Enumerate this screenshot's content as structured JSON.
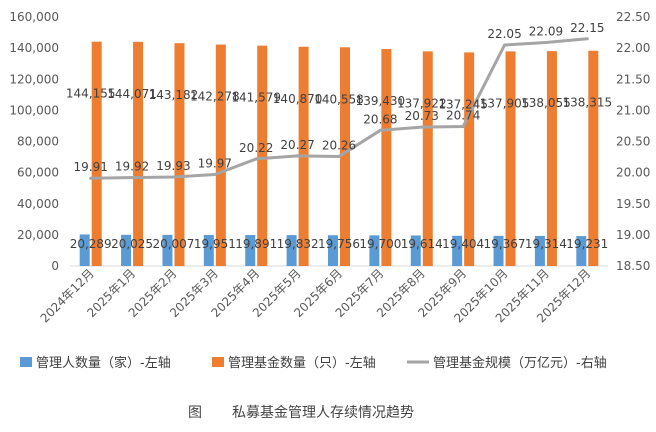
{
  "chart_data": {
    "type": "bar",
    "categories": [
      "2024年12月",
      "2025年1月",
      "2025年2月",
      "2025年3月",
      "2025年4月",
      "2025年5月",
      "2025年6月",
      "2025年7月",
      "2025年8月",
      "2025年9月",
      "2025年10月",
      "2025年11月",
      "2025年12月"
    ],
    "series": [
      {
        "name": "管理人数量（家）-左轴",
        "type": "bar",
        "axis": "left",
        "color": "#5b9bd5",
        "values": [
          20289,
          20025,
          20007,
          19951,
          19891,
          19832,
          19756,
          19700,
          19614,
          19404,
          19367,
          19314,
          19231
        ],
        "labels": [
          "20,289",
          "20,025",
          "20,007",
          "19,951",
          "19,891",
          "19,832",
          "19,756",
          "19,700",
          "19,614",
          "19,404",
          "19,367",
          "19,314",
          "19,231"
        ]
      },
      {
        "name": "管理基金数量（只）-左轴",
        "type": "bar",
        "axis": "left",
        "color": "#ed7d31",
        "values": [
          144155,
          144071,
          143182,
          142278,
          141579,
          140870,
          140558,
          139430,
          137922,
          137245,
          137905,
          138055,
          138315
        ],
        "labels": [
          "144,155",
          "144,071",
          "143,182",
          "142,278",
          "141,579",
          "140,870",
          "140,558",
          "139,430",
          "137,922",
          "137,245",
          "137,905",
          "138,055",
          "138,315"
        ]
      },
      {
        "name": "管理基金规模（万亿元）-右轴",
        "type": "line",
        "axis": "right",
        "color": "#a5a5a5",
        "values": [
          19.91,
          19.92,
          19.93,
          19.97,
          20.22,
          20.27,
          20.26,
          20.68,
          20.73,
          20.74,
          22.05,
          22.09,
          22.15
        ],
        "labels": [
          "19.91",
          "19.92",
          "19.93",
          "19.97",
          "20.22",
          "20.27",
          "20.26",
          "20.68",
          "20.73",
          "20.74",
          "22.05",
          "22.09",
          "22.15"
        ]
      }
    ],
    "y_left": {
      "min": 0,
      "max": 160000,
      "ticks": [
        "0",
        "20,000",
        "40,000",
        "60,000",
        "80,000",
        "100,000",
        "120,000",
        "140,000",
        "160,000"
      ]
    },
    "y_right": {
      "min": 18.5,
      "max": 22.5,
      "ticks": [
        "18.50",
        "19.00",
        "19.50",
        "20.00",
        "20.50",
        "21.00",
        "21.50",
        "22.00",
        "22.50"
      ]
    },
    "grid": false,
    "legend_position": "bottom"
  },
  "caption": {
    "label": "图",
    "text": "私募基金管理人存续情况趋势"
  }
}
